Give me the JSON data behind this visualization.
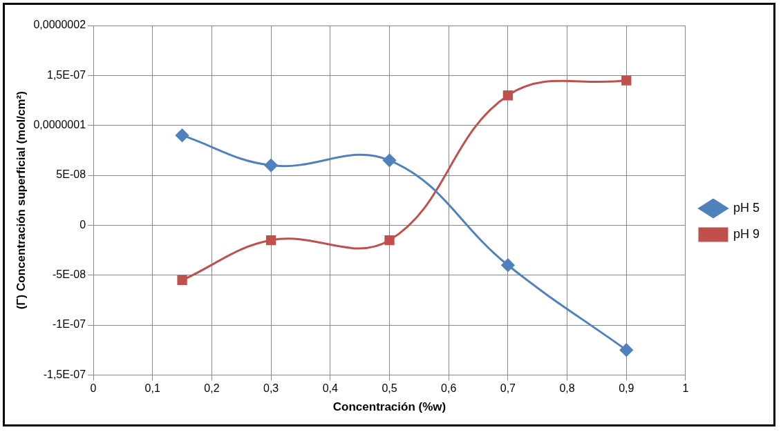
{
  "chart_data": {
    "type": "line",
    "xlabel": "Concentración (%w)",
    "ylabel": "(Γ) Concentración superficial (mol/cm²)",
    "x": [
      0.15,
      0.3,
      0.5,
      0.7,
      0.9
    ],
    "series": [
      {
        "name": "pH 5",
        "color": "#4f81bd",
        "marker": "diamond",
        "values": [
          9e-08,
          6e-08,
          6.5e-08,
          -4e-08,
          -1.25e-07
        ]
      },
      {
        "name": "pH 9",
        "color": "#c0504d",
        "marker": "square",
        "values": [
          -5.5e-08,
          -1.5e-08,
          -1.5e-08,
          1.3e-07,
          1.45e-07
        ]
      }
    ],
    "xlim": [
      0,
      1
    ],
    "xticks": [
      0,
      {
        "value": 0.1,
        "label": "0,1"
      },
      {
        "value": 0.2,
        "label": "0,2"
      },
      {
        "value": 0.3,
        "label": "0,3"
      },
      {
        "value": 0.4,
        "label": "0,4"
      },
      {
        "value": 0.5,
        "label": "0,5"
      },
      {
        "value": 0.6,
        "label": "0,6"
      },
      {
        "value": 0.7,
        "label": "0,7"
      },
      {
        "value": 0.8,
        "label": "0,8"
      },
      {
        "value": 0.9,
        "label": "0,9"
      },
      1
    ],
    "ylim": [
      -1.5e-07,
      2e-07
    ],
    "yticks": [
      {
        "value": -1.5e-07,
        "label": "-1,5E-07"
      },
      {
        "value": -1e-07,
        "label": "-1E-07"
      },
      {
        "value": -5e-08,
        "label": "-5E-08"
      },
      0,
      {
        "value": 5e-08,
        "label": "5E-08"
      },
      {
        "value": 1e-07,
        "label": "0,0000001"
      },
      {
        "value": 1.5e-07,
        "label": "1,5E-07"
      },
      {
        "value": 2e-07,
        "label": "0,0000002"
      }
    ],
    "grid": true,
    "legend": "right",
    "line_style": "solid"
  }
}
